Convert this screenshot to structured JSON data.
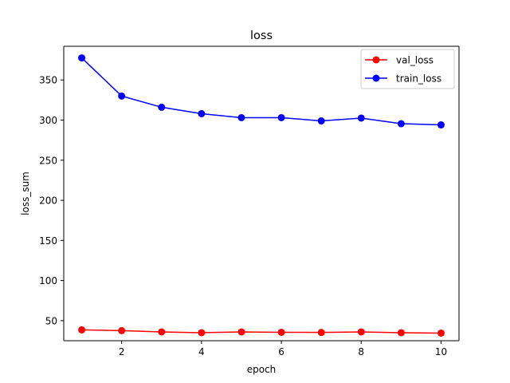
{
  "chart_data": {
    "type": "line",
    "title": "loss",
    "xlabel": "epoch",
    "ylabel": "loss_sum",
    "x": [
      1,
      2,
      3,
      4,
      5,
      6,
      7,
      8,
      9,
      10
    ],
    "xlim": [
      0.55,
      10.45
    ],
    "ylim": [
      25,
      392
    ],
    "xticks": [
      2,
      4,
      6,
      8,
      10
    ],
    "yticks": [
      50,
      100,
      150,
      200,
      250,
      300,
      350
    ],
    "grid": false,
    "legend_position": "top-right",
    "series": [
      {
        "name": "val_loss",
        "color": "#ff0000",
        "marker": "circle",
        "values": [
          38.5,
          37.5,
          36.0,
          35.0,
          36.0,
          35.5,
          35.3,
          36.0,
          35.0,
          34.5
        ]
      },
      {
        "name": "train_loss",
        "color": "#0000ff",
        "marker": "circle",
        "values": [
          377.5,
          330.0,
          316.0,
          308.0,
          303.0,
          303.0,
          299.0,
          302.5,
          295.5,
          294.0
        ]
      }
    ]
  }
}
